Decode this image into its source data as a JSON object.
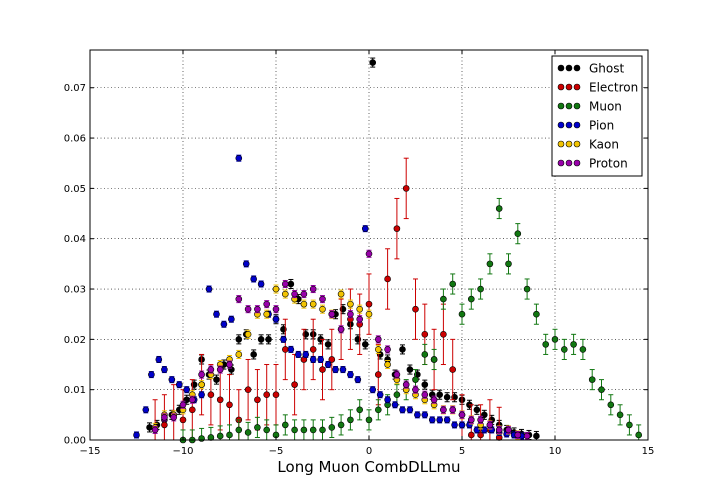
{
  "chart_data": {
    "type": "scatter",
    "xlabel": "Long Muon CombDLLmu",
    "ylabel": "",
    "xlim": [
      -15,
      15
    ],
    "ylim": [
      0,
      0.0775
    ],
    "xticks": [
      -15,
      -10,
      -5,
      0,
      5,
      10,
      15
    ],
    "xtick_labels": [
      "−15",
      "−10",
      "−5",
      "0",
      "5",
      "10",
      "15"
    ],
    "yticks": [
      0,
      0.01,
      0.02,
      0.03,
      0.04,
      0.05,
      0.06,
      0.07
    ],
    "ytick_labels": [
      "0.00",
      "0.01",
      "0.02",
      "0.03",
      "0.04",
      "0.05",
      "0.06",
      "0.07"
    ],
    "grid": true,
    "legend_position": "top-right",
    "series": [
      {
        "name": "Ghost",
        "color": "#000000",
        "err": 0.0009,
        "x": [
          -11.8,
          -11.4,
          -11,
          -10.6,
          -10.2,
          -9.8,
          -9.4,
          -9,
          -8.6,
          -8.2,
          -7.8,
          -7.4,
          -7,
          -6.6,
          -6.2,
          -5.8,
          -5.4,
          -5,
          -4.6,
          -4.2,
          -3.8,
          -3.4,
          -3,
          -2.6,
          -2.2,
          -1.8,
          -1.4,
          -1,
          -0.6,
          -0.2,
          0.2,
          0.6,
          1,
          1.4,
          1.8,
          2.2,
          2.6,
          3,
          3.4,
          3.8,
          4.2,
          4.6,
          5,
          5.4,
          5.8,
          6.2,
          6.6,
          7,
          7.4,
          7.8,
          8.2,
          8.6,
          9
        ],
        "y": [
          0.0025,
          0.003,
          0.004,
          0.005,
          0.006,
          0.008,
          0.011,
          0.016,
          0.013,
          0.012,
          0.015,
          0.014,
          0.02,
          0.021,
          0.017,
          0.02,
          0.02,
          0.024,
          0.022,
          0.031,
          0.028,
          0.021,
          0.021,
          0.02,
          0.019,
          0.025,
          0.026,
          0.023,
          0.02,
          0.019,
          0.075,
          0.017,
          0.016,
          0.013,
          0.018,
          0.014,
          0.013,
          0.011,
          0.009,
          0.009,
          0.0085,
          0.0085,
          0.008,
          0.007,
          0.006,
          0.005,
          0.004,
          0.003,
          0.002,
          0.0015,
          0.0012,
          0.001,
          0.0008
        ]
      },
      {
        "name": "Electron",
        "color": "#cc0000",
        "err": 0.006,
        "x": [
          -11.5,
          -11,
          -10.5,
          -10,
          -9.5,
          -9,
          -8.5,
          -8,
          -7.5,
          -7,
          -6.5,
          -6,
          -5.5,
          -5,
          -4.5,
          -4,
          -3.5,
          -3,
          -2.5,
          -2,
          -1.5,
          -1,
          -0.5,
          0,
          0.5,
          1,
          1.5,
          2,
          2.5,
          3,
          3.5,
          4,
          4.5,
          5,
          5.5,
          6,
          6.5,
          7
        ],
        "y": [
          0.002,
          0.003,
          0.005,
          0.004,
          0.006,
          0.011,
          0.009,
          0.008,
          0.007,
          0.004,
          0.01,
          0.008,
          0.009,
          0.009,
          0.018,
          0.011,
          0.016,
          0.018,
          0.014,
          0.016,
          0.022,
          0.024,
          0.023,
          0.027,
          0.013,
          0.032,
          0.042,
          0.05,
          0.026,
          0.021,
          0.016,
          0.021,
          0.014,
          0.003,
          0.001,
          0.001,
          0.002,
          0.0005
        ]
      },
      {
        "name": "Muon",
        "color": "#117711",
        "err": 0.002,
        "x": [
          -10,
          -9.5,
          -9,
          -8.5,
          -8,
          -7.5,
          -7,
          -6.5,
          -6,
          -5.5,
          -5,
          -4.5,
          -4,
          -3.5,
          -3,
          -2.5,
          -2,
          -1.5,
          -1,
          -0.5,
          0,
          0.5,
          1,
          1.5,
          2,
          2.5,
          3,
          3.5,
          4,
          4.5,
          5,
          5.5,
          6,
          6.5,
          7,
          7.5,
          8,
          8.5,
          9,
          9.5,
          10,
          10.5,
          11,
          11.5,
          12,
          12.5,
          13,
          13.5,
          14,
          14.5
        ],
        "y": [
          0,
          0,
          0.0003,
          0.0005,
          0.0008,
          0.001,
          0.002,
          0.0015,
          0.0025,
          0.002,
          0.001,
          0.003,
          0.002,
          0.002,
          0.002,
          0.002,
          0.0025,
          0.003,
          0.004,
          0.006,
          0.004,
          0.006,
          0.007,
          0.009,
          0.01,
          0.012,
          0.017,
          0.016,
          0.028,
          0.031,
          0.025,
          0.028,
          0.03,
          0.035,
          0.046,
          0.035,
          0.041,
          0.03,
          0.025,
          0.019,
          0.02,
          0.018,
          0.019,
          0.018,
          0.012,
          0.01,
          0.007,
          0.005,
          0.003,
          0.001
        ]
      },
      {
        "name": "Pion",
        "color": "#0000cc",
        "err": 0.0006,
        "x": [
          -12.5,
          -12,
          -11.7,
          -11.3,
          -11,
          -10.6,
          -10.2,
          -9.8,
          -9.4,
          -9,
          -8.6,
          -8.2,
          -7.8,
          -7.4,
          -7,
          -6.6,
          -6.2,
          -5.8,
          -5.4,
          -5,
          -4.6,
          -4.2,
          -3.8,
          -3.4,
          -3,
          -2.6,
          -2.2,
          -1.8,
          -1.4,
          -1,
          -0.6,
          -0.2,
          0.2,
          0.6,
          1,
          1.4,
          1.8,
          2.2,
          2.6,
          3,
          3.4,
          3.8,
          4.2,
          4.6,
          5,
          5.4,
          5.8,
          6.2,
          6.6,
          7,
          7.4,
          7.8,
          8.2
        ],
        "y": [
          0.001,
          0.006,
          0.013,
          0.016,
          0.014,
          0.012,
          0.011,
          0.01,
          0.008,
          0.009,
          0.03,
          0.025,
          0.023,
          0.024,
          0.056,
          0.035,
          0.032,
          0.031,
          0.025,
          0.024,
          0.02,
          0.018,
          0.017,
          0.017,
          0.016,
          0.016,
          0.015,
          0.014,
          0.014,
          0.013,
          0.012,
          0.042,
          0.01,
          0.009,
          0.008,
          0.007,
          0.006,
          0.006,
          0.005,
          0.005,
          0.004,
          0.004,
          0.004,
          0.003,
          0.003,
          0.003,
          0.002,
          0.002,
          0.002,
          0.0015,
          0.0012,
          0.001,
          0.0008
        ]
      },
      {
        "name": "Kaon",
        "color": "#f2c400",
        "err": 0.0008,
        "x": [
          -11.5,
          -11,
          -10.5,
          -10,
          -9.5,
          -9,
          -8.5,
          -8,
          -7.5,
          -7,
          -6.5,
          -6,
          -5.5,
          -5,
          -4.5,
          -4,
          -3.5,
          -3,
          -2.5,
          -2,
          -1.5,
          -1,
          -0.5,
          0,
          0.5,
          1,
          1.5,
          2,
          2.5,
          3,
          3.5,
          4,
          4.5,
          5,
          5.5,
          6,
          6.5,
          7,
          7.5,
          8
        ],
        "y": [
          0.0025,
          0.005,
          0.005,
          0.006,
          0.009,
          0.011,
          0.013,
          0.015,
          0.016,
          0.017,
          0.021,
          0.025,
          0.025,
          0.03,
          0.029,
          0.028,
          0.027,
          0.027,
          0.026,
          0.025,
          0.029,
          0.027,
          0.026,
          0.025,
          0.018,
          0.015,
          0.012,
          0.01,
          0.009,
          0.008,
          0.007,
          0.006,
          0.006,
          0.005,
          0.004,
          0.003,
          0.003,
          0.002,
          0.002,
          0.001
        ]
      },
      {
        "name": "Proton",
        "color": "#9900aa",
        "err": 0.0007,
        "x": [
          -11.5,
          -11,
          -10.5,
          -10,
          -9.5,
          -9,
          -8.5,
          -8,
          -7.5,
          -7,
          -6.5,
          -6,
          -5.5,
          -5,
          -4.5,
          -4,
          -3.5,
          -3,
          -2.5,
          -2,
          -1.5,
          -1,
          -0.5,
          0,
          0.5,
          1,
          1.5,
          2,
          2.5,
          3,
          3.5,
          4,
          4.5,
          5,
          5.5,
          6,
          6.5,
          7,
          7.5,
          8,
          8.5
        ],
        "y": [
          0.002,
          0.0045,
          0.0045,
          0.007,
          0.008,
          0.013,
          0.014,
          0.014,
          0.015,
          0.028,
          0.026,
          0.026,
          0.027,
          0.026,
          0.031,
          0.029,
          0.029,
          0.03,
          0.028,
          0.025,
          0.022,
          0.025,
          0.024,
          0.037,
          0.02,
          0.018,
          0.013,
          0.011,
          0.01,
          0.009,
          0.008,
          0.006,
          0.006,
          0.005,
          0.004,
          0.004,
          0.003,
          0.002,
          0.002,
          0.001,
          0.0008
        ]
      }
    ]
  }
}
